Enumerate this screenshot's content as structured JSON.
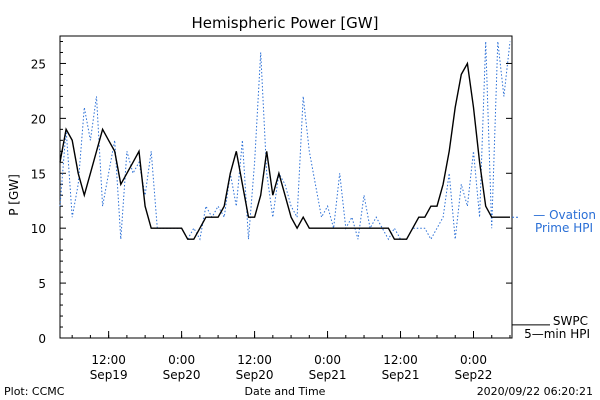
{
  "chart_data": {
    "type": "line",
    "title": "Hemispheric Power [GW]",
    "ylabel": "P [GW]",
    "xlabel": "Date and Time",
    "ylim": [
      0,
      27.5
    ],
    "yticks": [
      0,
      5,
      10,
      15,
      20,
      25
    ],
    "xlim": [
      "2020-09-19T04:00",
      "2020-09-22T06:20"
    ],
    "xticks": [
      {
        "x": "2020-09-19T12:00",
        "time": "12:00",
        "date": "Sep19"
      },
      {
        "x": "2020-09-20T00:00",
        "time": "0:00",
        "date": "Sep20"
      },
      {
        "x": "2020-09-20T12:00",
        "time": "12:00",
        "date": "Sep20"
      },
      {
        "x": "2020-09-21T00:00",
        "time": "0:00",
        "date": "Sep21"
      },
      {
        "x": "2020-09-21T12:00",
        "time": "12:00",
        "date": "Sep21"
      },
      {
        "x": "2020-09-22T00:00",
        "time": "0:00",
        "date": "Sep22"
      }
    ],
    "series": [
      {
        "name": "Ovation Prime HPI",
        "legend": [
          "— Ovation",
          "Prime HPI"
        ],
        "color": "#2a6fd6",
        "style": "dotted",
        "x": [
          "2020-09-19T04:00",
          "2020-09-19T05:00",
          "2020-09-19T06:00",
          "2020-09-19T07:00",
          "2020-09-19T08:00",
          "2020-09-19T09:00",
          "2020-09-19T10:00",
          "2020-09-19T11:00",
          "2020-09-19T12:00",
          "2020-09-19T13:00",
          "2020-09-19T14:00",
          "2020-09-19T15:00",
          "2020-09-19T16:00",
          "2020-09-19T17:00",
          "2020-09-19T18:00",
          "2020-09-19T19:00",
          "2020-09-19T20:00",
          "2020-09-19T21:00",
          "2020-09-19T22:00",
          "2020-09-19T23:00",
          "2020-09-20T00:00",
          "2020-09-20T01:00",
          "2020-09-20T02:00",
          "2020-09-20T03:00",
          "2020-09-20T04:00",
          "2020-09-20T05:00",
          "2020-09-20T06:00",
          "2020-09-20T07:00",
          "2020-09-20T08:00",
          "2020-09-20T09:00",
          "2020-09-20T10:00",
          "2020-09-20T11:00",
          "2020-09-20T12:00",
          "2020-09-20T13:00",
          "2020-09-20T14:00",
          "2020-09-20T15:00",
          "2020-09-20T16:00",
          "2020-09-20T17:00",
          "2020-09-20T18:00",
          "2020-09-20T19:00",
          "2020-09-20T20:00",
          "2020-09-20T21:00",
          "2020-09-20T22:00",
          "2020-09-20T23:00",
          "2020-09-21T00:00",
          "2020-09-21T01:00",
          "2020-09-21T02:00",
          "2020-09-21T03:00",
          "2020-09-21T04:00",
          "2020-09-21T05:00",
          "2020-09-21T06:00",
          "2020-09-21T07:00",
          "2020-09-21T08:00",
          "2020-09-21T09:00",
          "2020-09-21T10:00",
          "2020-09-21T11:00",
          "2020-09-21T12:00",
          "2020-09-21T13:00",
          "2020-09-21T14:00",
          "2020-09-21T15:00",
          "2020-09-21T16:00",
          "2020-09-21T17:00",
          "2020-09-21T18:00",
          "2020-09-21T19:00",
          "2020-09-21T20:00",
          "2020-09-21T21:00",
          "2020-09-21T22:00",
          "2020-09-21T23:00",
          "2020-09-22T00:00",
          "2020-09-22T01:00",
          "2020-09-22T02:00",
          "2020-09-22T03:00",
          "2020-09-22T04:00",
          "2020-09-22T05:00",
          "2020-09-22T06:00"
        ],
        "y": [
          12,
          19,
          11,
          14,
          21,
          18,
          22,
          12,
          15,
          18,
          9,
          17,
          15,
          16,
          13,
          17,
          10,
          10,
          10,
          10,
          10,
          9,
          10,
          9,
          12,
          11,
          12,
          11,
          15,
          12,
          18,
          9,
          16,
          26,
          15,
          11,
          15,
          14,
          12,
          11,
          22,
          17,
          14,
          11,
          12,
          10,
          15,
          10,
          11,
          9,
          13,
          10,
          11,
          10,
          9,
          10,
          9,
          9,
          10,
          10,
          10,
          9,
          10,
          11,
          15,
          9,
          14,
          12,
          17,
          11,
          27,
          10,
          27,
          22,
          27
        ]
      },
      {
        "name": "SWPC 5-min HPI",
        "legend": [
          "SWPC",
          "5—min HPI"
        ],
        "color": "#000000",
        "style": "solid",
        "x": [
          "2020-09-19T04:00",
          "2020-09-19T05:00",
          "2020-09-19T06:00",
          "2020-09-19T07:00",
          "2020-09-19T08:00",
          "2020-09-19T09:00",
          "2020-09-19T10:00",
          "2020-09-19T11:00",
          "2020-09-19T12:00",
          "2020-09-19T13:00",
          "2020-09-19T14:00",
          "2020-09-19T15:00",
          "2020-09-19T16:00",
          "2020-09-19T17:00",
          "2020-09-19T18:00",
          "2020-09-19T19:00",
          "2020-09-19T20:00",
          "2020-09-19T21:00",
          "2020-09-19T22:00",
          "2020-09-19T23:00",
          "2020-09-20T00:00",
          "2020-09-20T01:00",
          "2020-09-20T02:00",
          "2020-09-20T03:00",
          "2020-09-20T04:00",
          "2020-09-20T05:00",
          "2020-09-20T06:00",
          "2020-09-20T07:00",
          "2020-09-20T08:00",
          "2020-09-20T09:00",
          "2020-09-20T10:00",
          "2020-09-20T11:00",
          "2020-09-20T12:00",
          "2020-09-20T13:00",
          "2020-09-20T14:00",
          "2020-09-20T15:00",
          "2020-09-20T16:00",
          "2020-09-20T17:00",
          "2020-09-20T18:00",
          "2020-09-20T19:00",
          "2020-09-20T20:00",
          "2020-09-20T21:00",
          "2020-09-20T22:00",
          "2020-09-20T23:00",
          "2020-09-21T00:00",
          "2020-09-21T01:00",
          "2020-09-21T02:00",
          "2020-09-21T03:00",
          "2020-09-21T04:00",
          "2020-09-21T05:00",
          "2020-09-21T06:00",
          "2020-09-21T07:00",
          "2020-09-21T08:00",
          "2020-09-21T09:00",
          "2020-09-21T10:00",
          "2020-09-21T11:00",
          "2020-09-21T12:00",
          "2020-09-21T13:00",
          "2020-09-21T14:00",
          "2020-09-21T15:00",
          "2020-09-21T16:00",
          "2020-09-21T17:00",
          "2020-09-21T18:00",
          "2020-09-21T19:00",
          "2020-09-21T20:00",
          "2020-09-21T21:00",
          "2020-09-21T22:00",
          "2020-09-21T23:00",
          "2020-09-22T00:00",
          "2020-09-22T01:00",
          "2020-09-22T02:00",
          "2020-09-22T03:00",
          "2020-09-22T04:00",
          "2020-09-22T05:00",
          "2020-09-22T06:00"
        ],
        "y": [
          16,
          19,
          18,
          15,
          13,
          15,
          17,
          19,
          18,
          17,
          14,
          15,
          16,
          17,
          12,
          10,
          10,
          10,
          10,
          10,
          10,
          9,
          9,
          10,
          11,
          11,
          11,
          12,
          15,
          17,
          14,
          11,
          11,
          13,
          17,
          13,
          15,
          13,
          11,
          10,
          11,
          10,
          10,
          10,
          10,
          10,
          10,
          10,
          10,
          10,
          10,
          10,
          10,
          10,
          10,
          9,
          9,
          9,
          10,
          11,
          11,
          12,
          12,
          14,
          17,
          21,
          24,
          25,
          21,
          16,
          12,
          11,
          11,
          11,
          11
        ]
      }
    ]
  },
  "footer": {
    "plot_credit": "Plot: CCMC",
    "timestamp": "2020/09/22 06:20:21"
  }
}
